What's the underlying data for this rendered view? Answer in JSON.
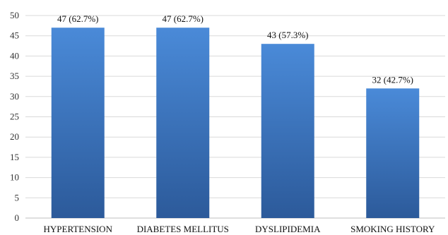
{
  "chart_data": {
    "type": "bar",
    "categories": [
      "HYPERTENSION",
      "DIABETES MELLITUS",
      "DYSLIPIDEMIA",
      "SMOKING HISTORY"
    ],
    "values": [
      47,
      47,
      43,
      32
    ],
    "data_labels": [
      "47 (62.7%)",
      "47 (62.7%)",
      "43 (57.3%)",
      "32 (42.7%)"
    ],
    "ylim": [
      0,
      50
    ],
    "yticks": [
      0,
      5,
      10,
      15,
      20,
      25,
      30,
      35,
      40,
      45,
      50
    ],
    "grid": true,
    "legend": "none",
    "colors": {
      "bar_top": "#4a8ad8",
      "bar_bottom": "#2c5a9a"
    }
  }
}
